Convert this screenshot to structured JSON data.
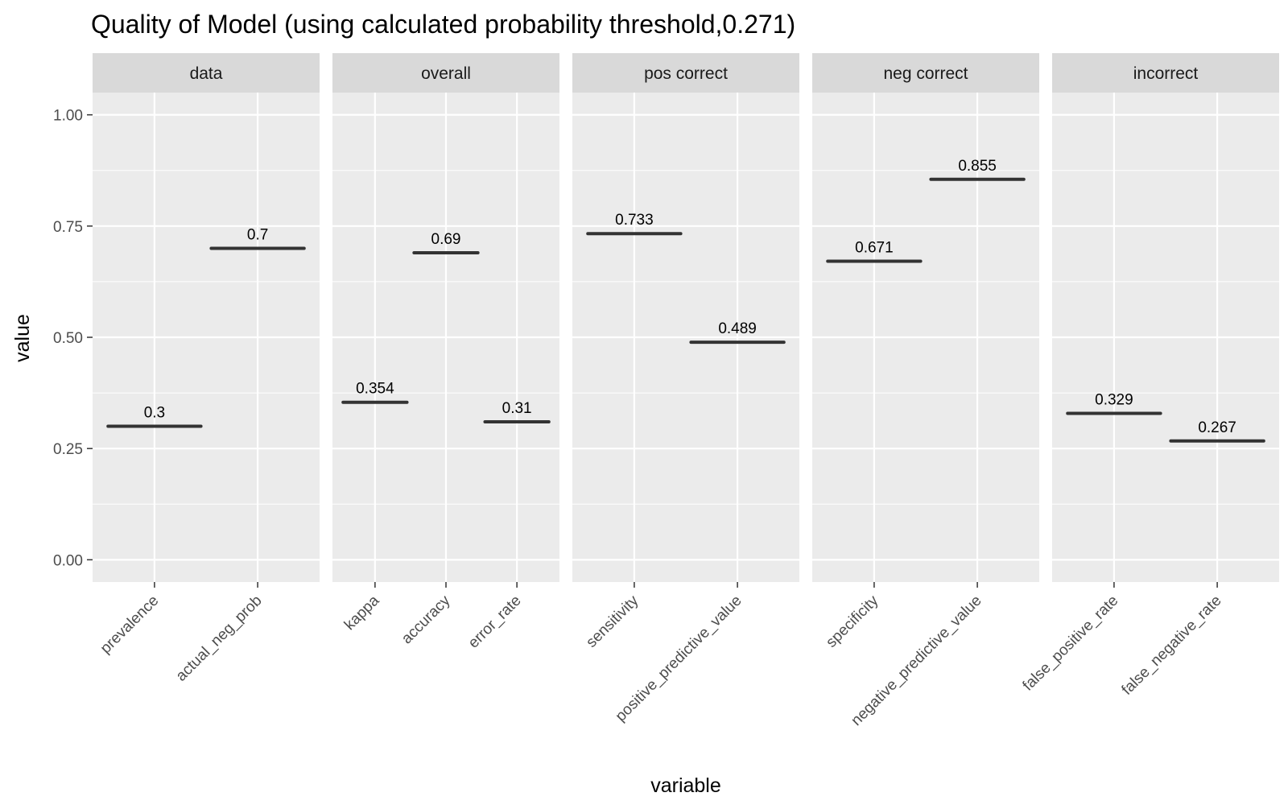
{
  "chart_data": {
    "type": "crossbar",
    "title": "Quality of Model (using calculated probability threshold,0.271)",
    "xlabel": "variable",
    "ylabel": "value",
    "ylim": [
      -0.05,
      1.05
    ],
    "yticks": [
      0,
      0.25,
      0.5,
      0.75,
      1
    ],
    "ytick_labels": [
      "0.00",
      "0.25",
      "0.50",
      "0.75",
      "1.00"
    ],
    "grid": true,
    "legend": "none",
    "colors": {
      "panel_bg": "#ebebeb",
      "strip_bg": "#d9d9d9",
      "grid": "#ffffff",
      "mark": "#333333"
    },
    "facets": [
      {
        "name": "data",
        "points": [
          {
            "variable": "prevalence",
            "value": 0.3,
            "label": "0.3"
          },
          {
            "variable": "actual_neg_prob",
            "value": 0.7,
            "label": "0.7"
          }
        ]
      },
      {
        "name": "overall",
        "points": [
          {
            "variable": "kappa",
            "value": 0.354,
            "label": "0.354"
          },
          {
            "variable": "accuracy",
            "value": 0.69,
            "label": "0.69"
          },
          {
            "variable": "error_rate",
            "value": 0.31,
            "label": "0.31"
          }
        ]
      },
      {
        "name": "pos correct",
        "points": [
          {
            "variable": "sensitivity",
            "value": 0.733,
            "label": "0.733"
          },
          {
            "variable": "positive_predictive_value",
            "value": 0.489,
            "label": "0.489"
          }
        ]
      },
      {
        "name": "neg correct",
        "points": [
          {
            "variable": "specificity",
            "value": 0.671,
            "label": "0.671"
          },
          {
            "variable": "negative_predictive_value",
            "value": 0.855,
            "label": "0.855"
          }
        ]
      },
      {
        "name": "incorrect",
        "points": [
          {
            "variable": "false_positive_rate",
            "value": 0.329,
            "label": "0.329"
          },
          {
            "variable": "false_negative_rate",
            "value": 0.267,
            "label": "0.267"
          }
        ]
      }
    ]
  }
}
